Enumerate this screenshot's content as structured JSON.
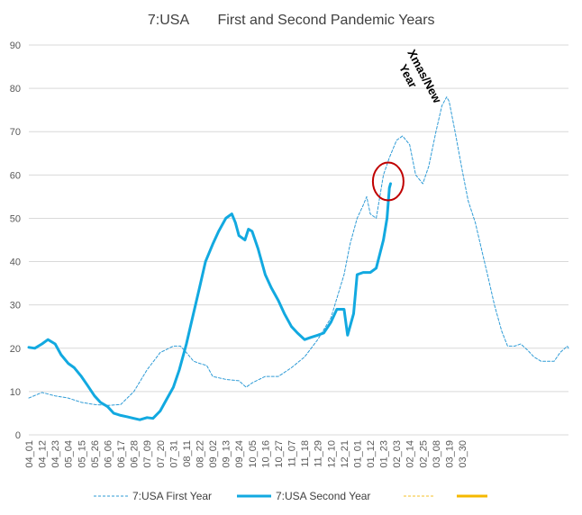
{
  "chart_data": {
    "type": "line",
    "title_left": "7:USA",
    "title_right": "First and Second Pandemic Years",
    "ylim": [
      0,
      90
    ],
    "yticks": [
      0,
      10,
      20,
      30,
      40,
      50,
      60,
      70,
      80,
      90
    ],
    "grid": true,
    "legend_position": "bottom",
    "x_ticks": [
      "04_01",
      "04_12",
      "04_23",
      "05_04",
      "05_15",
      "05_26",
      "06_06",
      "06_17",
      "06_28",
      "07_09",
      "07_20",
      "07_31",
      "08_11",
      "08_22",
      "09_02",
      "09_13",
      "09_24",
      "10_05",
      "10_16",
      "10_27",
      "11_07",
      "11_18",
      "11_29",
      "12_10",
      "12_21",
      "01_01",
      "01_12",
      "01_23",
      "02_03",
      "02_14",
      "02_25",
      "03_08",
      "03_19",
      "03_30"
    ],
    "series": [
      {
        "name": "7:USA First Year",
        "color": "#2E9BD6",
        "dash": true,
        "points": [
          [
            0,
            8.5
          ],
          [
            11,
            9.8
          ],
          [
            22,
            9.0
          ],
          [
            33,
            8.5
          ],
          [
            44,
            7.5
          ],
          [
            55,
            7.0
          ],
          [
            66,
            6.8
          ],
          [
            77,
            7.0
          ],
          [
            88,
            10.0
          ],
          [
            99,
            15.0
          ],
          [
            110,
            19.0
          ],
          [
            121,
            20.5
          ],
          [
            127,
            20.5
          ],
          [
            132,
            19.0
          ],
          [
            138,
            17.0
          ],
          [
            143,
            16.5
          ],
          [
            149,
            16.0
          ],
          [
            154,
            13.5
          ],
          [
            165,
            12.8
          ],
          [
            176,
            12.5
          ],
          [
            182,
            11.0
          ],
          [
            187,
            12.0
          ],
          [
            198,
            13.5
          ],
          [
            209,
            13.5
          ],
          [
            220,
            15.5
          ],
          [
            231,
            18.0
          ],
          [
            242,
            22.0
          ],
          [
            253,
            27.0
          ],
          [
            264,
            37.0
          ],
          [
            269,
            44.0
          ],
          [
            275,
            50.0
          ],
          [
            280,
            53.0
          ],
          [
            283,
            55.0
          ],
          [
            286,
            51.0
          ],
          [
            291,
            50.0
          ],
          [
            297,
            60.0
          ],
          [
            302,
            64.0
          ],
          [
            308,
            68.0
          ],
          [
            313,
            69.0
          ],
          [
            319,
            67.0
          ],
          [
            324,
            60.0
          ],
          [
            330,
            58.0
          ],
          [
            335,
            62.0
          ],
          [
            341,
            70.0
          ],
          [
            346,
            76.0
          ],
          [
            350,
            78.0
          ],
          [
            352,
            77.0
          ],
          [
            357,
            70.0
          ],
          [
            363,
            61.0
          ],
          [
            368,
            54.0
          ],
          [
            374,
            49.0
          ],
          [
            379,
            43.0
          ],
          [
            385,
            36.0
          ],
          [
            390,
            30.0
          ],
          [
            396,
            24.0
          ],
          [
            401,
            20.5
          ],
          [
            407,
            20.5
          ],
          [
            412,
            21.0
          ],
          [
            418,
            19.5
          ],
          [
            423,
            18.0
          ],
          [
            429,
            17.0
          ],
          [
            434,
            17.0
          ],
          [
            440,
            17.0
          ],
          [
            445,
            19.0
          ],
          [
            451,
            20.5
          ],
          [
            452,
            20.0
          ]
        ]
      },
      {
        "name": "7:USA Second Year",
        "color": "#12A9E0",
        "dash": false,
        "points": [
          [
            0,
            20.2
          ],
          [
            5,
            20.0
          ],
          [
            11,
            21.0
          ],
          [
            16,
            22.0
          ],
          [
            22,
            21.0
          ],
          [
            27,
            18.5
          ],
          [
            33,
            16.5
          ],
          [
            38,
            15.5
          ],
          [
            44,
            13.5
          ],
          [
            49,
            11.5
          ],
          [
            55,
            9.0
          ],
          [
            60,
            7.5
          ],
          [
            66,
            6.5
          ],
          [
            71,
            5.0
          ],
          [
            77,
            4.5
          ],
          [
            82,
            4.2
          ],
          [
            88,
            3.8
          ],
          [
            93,
            3.5
          ],
          [
            99,
            4.0
          ],
          [
            104,
            3.8
          ],
          [
            110,
            5.5
          ],
          [
            115,
            8.0
          ],
          [
            121,
            11.0
          ],
          [
            126,
            15.0
          ],
          [
            132,
            21.0
          ],
          [
            137,
            27.0
          ],
          [
            143,
            34.0
          ],
          [
            148,
            40.0
          ],
          [
            154,
            44.0
          ],
          [
            159,
            47.0
          ],
          [
            165,
            50.0
          ],
          [
            170,
            51.0
          ],
          [
            173,
            49.0
          ],
          [
            176,
            46.0
          ],
          [
            181,
            45.0
          ],
          [
            184,
            47.5
          ],
          [
            187,
            47.0
          ],
          [
            192,
            43.0
          ],
          [
            198,
            37.0
          ],
          [
            203,
            34.0
          ],
          [
            209,
            31.0
          ],
          [
            214,
            28.0
          ],
          [
            220,
            25.0
          ],
          [
            225,
            23.5
          ],
          [
            231,
            22.0
          ],
          [
            236,
            22.5
          ],
          [
            242,
            23.0
          ],
          [
            247,
            23.5
          ],
          [
            253,
            26.0
          ],
          [
            258,
            29.0
          ],
          [
            264,
            29.0
          ],
          [
            267,
            23.0
          ],
          [
            272,
            28.0
          ],
          [
            275,
            37.0
          ],
          [
            280,
            37.5
          ],
          [
            286,
            37.5
          ],
          [
            291,
            38.5
          ],
          [
            297,
            45.0
          ],
          [
            300,
            50.0
          ],
          [
            302,
            57.0
          ],
          [
            303,
            58.0
          ]
        ]
      },
      {
        "name": "",
        "color": "#F5C02A",
        "dash": true,
        "points": []
      },
      {
        "name": "",
        "color": "#F5B800",
        "dash": false,
        "points": []
      }
    ],
    "annotation": {
      "line1": "Xmas/New",
      "line2": "Year",
      "circle_x": 301,
      "circle_y": 58.5
    }
  }
}
